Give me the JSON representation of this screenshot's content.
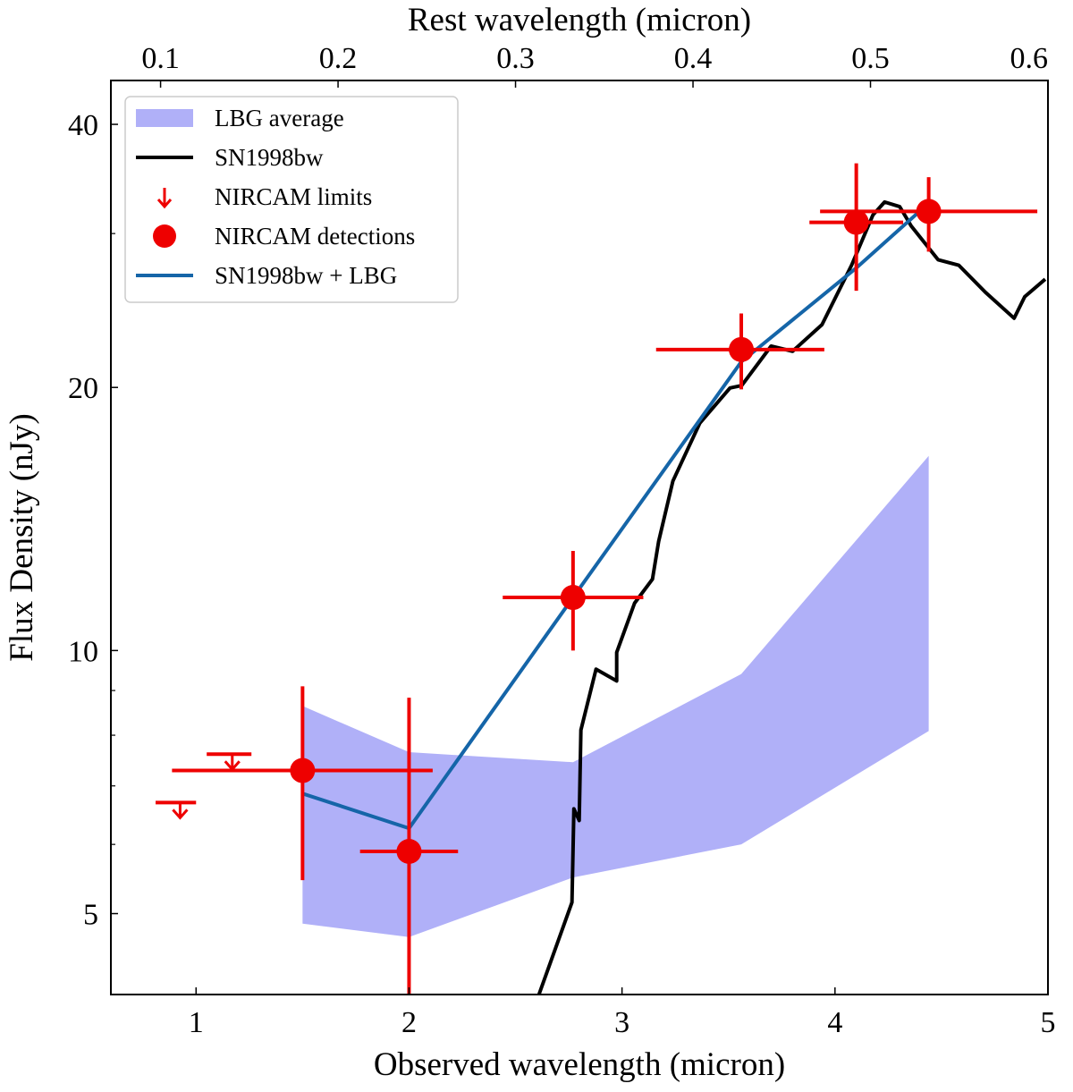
{
  "chart_data": {
    "type": "scatter",
    "xlabel": "Observed wavelength (micron)",
    "ylabel": "Flux Density (nJy)",
    "top_xlabel": "Rest wavelength (micron)",
    "xlim": [
      0.6,
      5.0
    ],
    "ylim": [
      4.04,
      44.9
    ],
    "yscale": "log",
    "grid": false,
    "legend_placement": "top-left",
    "x_ticks": [
      1,
      2,
      3,
      4,
      5
    ],
    "y_ticks": [
      5,
      10,
      20,
      40
    ],
    "y_minor_ticks": [
      6,
      7,
      8,
      9,
      30
    ],
    "top_x_ticks": [
      0.1,
      0.2,
      0.3,
      0.4,
      0.5,
      0.6
    ],
    "colors": {
      "band": "#b0b0f8",
      "sn": "#000000",
      "points": "#ee0000",
      "model": "#1565a8"
    },
    "legend": [
      {
        "label": "LBG average",
        "kind": "patch"
      },
      {
        "label": "SN1998bw",
        "kind": "line-black"
      },
      {
        "label": "NIRCAM limits",
        "kind": "arrow"
      },
      {
        "label": "NIRCAM detections",
        "kind": "circle"
      },
      {
        "label": "SN1998bw + LBG",
        "kind": "line-blue"
      }
    ],
    "lbg_average": {
      "x": [
        1.5,
        2.0,
        2.77,
        3.56,
        4.44
      ],
      "lower": [
        4.87,
        4.7,
        5.5,
        6.0,
        8.09
      ],
      "upper": [
        8.64,
        7.65,
        7.45,
        9.4,
        16.7
      ]
    },
    "sn1998bw": {
      "x": [
        2.61,
        2.765,
        2.774,
        2.799,
        2.807,
        2.878,
        2.975,
        2.975,
        3.059,
        3.143,
        3.172,
        3.239,
        3.365,
        3.507,
        3.562,
        3.7,
        3.801,
        3.939,
        4.078,
        4.178,
        4.233,
        4.304,
        4.358,
        4.484,
        4.581,
        4.706,
        4.841,
        4.891,
        4.987
      ],
      "y": [
        4.04,
        5.15,
        6.59,
        6.39,
        8.11,
        9.52,
        9.23,
        9.95,
        11.33,
        12.07,
        13.33,
        15.63,
        18.2,
        19.97,
        20.1,
        22.3,
        22.0,
        23.6,
        27.6,
        31.5,
        32.6,
        32.2,
        30.6,
        28.0,
        27.6,
        25.7,
        24.0,
        25.4,
        26.6
      ]
    },
    "nircam_limits": [
      {
        "x": 0.925,
        "y": 6.7,
        "xmin": 0.81,
        "xmax": 1.0
      },
      {
        "x": 1.17,
        "y": 7.61,
        "xmin": 1.05,
        "xmax": 1.26
      }
    ],
    "nircam_detections": [
      {
        "x": 1.5,
        "y": 7.29,
        "xmin": 0.887,
        "xmax": 2.111,
        "ymin": 5.46,
        "ymax": 9.1
      },
      {
        "x": 2.0,
        "y": 5.89,
        "xmin": 1.77,
        "xmax": 2.23,
        "ymin": 4.04,
        "ymax": 8.83
      },
      {
        "x": 2.77,
        "y": 11.5,
        "xmin": 2.44,
        "xmax": 3.1,
        "ymin": 10.0,
        "ymax": 13.0
      },
      {
        "x": 3.56,
        "y": 22.1,
        "xmin": 3.16,
        "xmax": 3.95,
        "ymin": 19.9,
        "ymax": 24.3
      },
      {
        "x": 4.1,
        "y": 30.9,
        "xmin": 3.88,
        "xmax": 4.32,
        "ymin": 25.8,
        "ymax": 36.1
      },
      {
        "x": 4.44,
        "y": 31.8,
        "xmin": 3.93,
        "xmax": 4.95,
        "ymin": 28.6,
        "ymax": 34.8
      }
    ],
    "sn1998bw_plus_lbg": {
      "x": [
        1.5,
        2.0,
        2.77,
        3.56,
        4.1,
        4.44
      ],
      "y": [
        6.86,
        6.26,
        11.5,
        21.4,
        27.4,
        32.5
      ]
    }
  }
}
